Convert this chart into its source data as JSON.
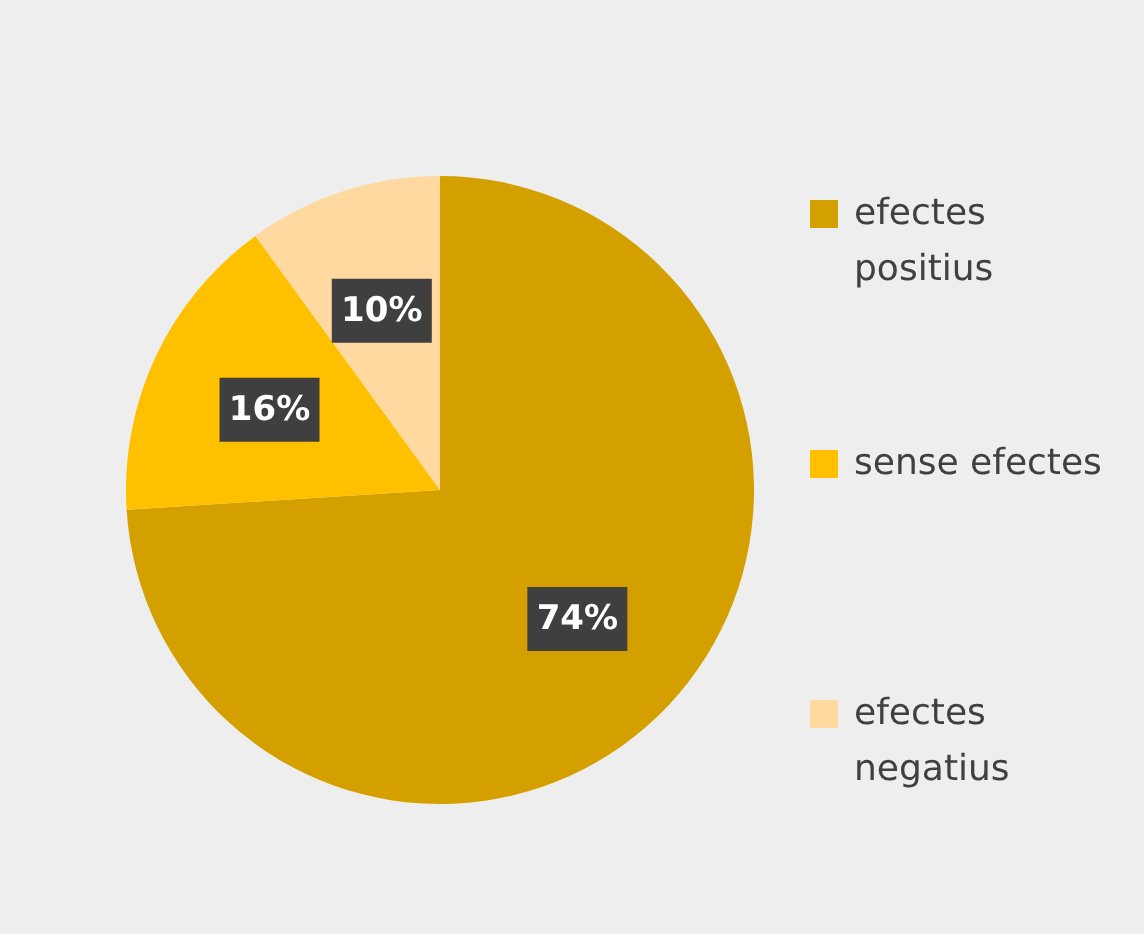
{
  "chart_data": {
    "type": "pie",
    "categories": [
      "efectes positius",
      "sense efectes",
      "efectes negatius"
    ],
    "values": [
      74,
      16,
      10
    ],
    "colors": [
      "#d4a000",
      "#ffc000",
      "#ffd99f"
    ],
    "value_labels": [
      "74%",
      "16%",
      "10%"
    ],
    "legend": "right"
  }
}
